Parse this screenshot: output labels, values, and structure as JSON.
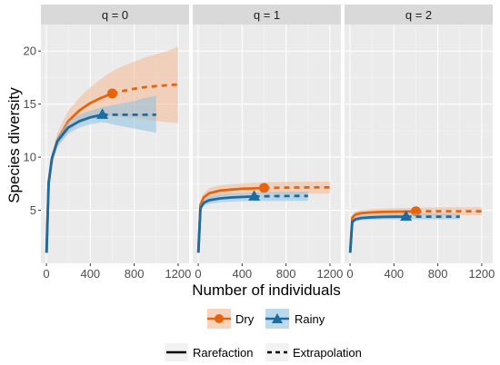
{
  "chart_data": {
    "type": "line",
    "facet_variable": "q",
    "facets": [
      {
        "label": "q = 0",
        "series": [
          {
            "name": "Dry",
            "observed": [
              600,
              16.0
            ],
            "x": [
              1,
              20,
              50,
              100,
              200,
              300,
              400,
              500,
              600,
              700,
              800,
              900,
              1000,
              1100,
              1200
            ],
            "y": [
              1.0,
              7.5,
              9.8,
              11.6,
              13.4,
              14.4,
              15.1,
              15.6,
              16.0,
              16.25,
              16.45,
              16.6,
              16.7,
              16.78,
              16.85
            ],
            "lower": [
              1.0,
              7.2,
              9.3,
              10.9,
              12.4,
              13.2,
              13.6,
              13.8,
              13.9,
              13.8,
              13.7,
              13.55,
              13.4,
              13.3,
              13.2
            ],
            "upper": [
              1.0,
              7.8,
              10.3,
              12.3,
              14.4,
              15.6,
              16.6,
              17.4,
              18.1,
              18.6,
              19.0,
              19.4,
              19.7,
              20.0,
              20.4
            ]
          },
          {
            "name": "Rainy",
            "observed": [
              510,
              14.0
            ],
            "x": [
              1,
              20,
              50,
              100,
              200,
              300,
              400,
              510,
              600,
              700,
              800,
              900,
              1000
            ],
            "y": [
              1.0,
              7.6,
              9.9,
              11.5,
              12.8,
              13.4,
              13.75,
              14.0,
              14.0,
              14.0,
              14.0,
              14.0,
              14.0
            ],
            "lower": [
              1.0,
              7.4,
              9.5,
              11.0,
              12.2,
              12.8,
              13.1,
              13.3,
              13.1,
              12.9,
              12.7,
              12.5,
              12.3
            ],
            "upper": [
              1.0,
              7.8,
              10.3,
              12.0,
              13.4,
              14.0,
              14.4,
              14.7,
              14.9,
              15.1,
              15.3,
              15.6,
              15.8
            ]
          }
        ]
      },
      {
        "label": "q = 1",
        "series": [
          {
            "name": "Dry",
            "observed": [
              600,
              7.1
            ],
            "x": [
              1,
              20,
              50,
              100,
              200,
              300,
              400,
              500,
              600,
              700,
              800,
              900,
              1000,
              1100,
              1200
            ],
            "y": [
              1.0,
              5.5,
              6.2,
              6.6,
              6.85,
              6.95,
              7.02,
              7.06,
              7.1,
              7.12,
              7.13,
              7.14,
              7.15,
              7.15,
              7.15
            ],
            "lower": [
              1.0,
              5.1,
              5.8,
              6.1,
              6.35,
              6.45,
              6.5,
              6.52,
              6.55,
              6.55,
              6.55,
              6.55,
              6.55,
              6.55,
              6.55
            ],
            "upper": [
              1.0,
              5.9,
              6.6,
              7.1,
              7.35,
              7.45,
              7.52,
              7.58,
              7.62,
              7.65,
              7.67,
              7.68,
              7.7,
              7.7,
              7.7
            ]
          },
          {
            "name": "Rainy",
            "observed": [
              510,
              6.3
            ],
            "x": [
              1,
              20,
              50,
              100,
              200,
              300,
              400,
              510,
              600,
              700,
              800,
              900,
              1000
            ],
            "y": [
              1.0,
              5.2,
              5.7,
              5.95,
              6.12,
              6.2,
              6.25,
              6.3,
              6.32,
              6.33,
              6.34,
              6.35,
              6.35
            ],
            "lower": [
              1.0,
              4.9,
              5.4,
              5.6,
              5.75,
              5.82,
              5.85,
              5.88,
              5.88,
              5.88,
              5.88,
              5.88,
              5.88
            ],
            "upper": [
              1.0,
              5.5,
              6.0,
              6.3,
              6.5,
              6.58,
              6.63,
              6.68,
              6.7,
              6.72,
              6.74,
              6.75,
              6.76
            ]
          }
        ]
      },
      {
        "label": "q = 2",
        "series": [
          {
            "name": "Dry",
            "observed": [
              600,
              4.9
            ],
            "x": [
              1,
              20,
              50,
              100,
              200,
              300,
              400,
              500,
              600,
              700,
              800,
              900,
              1000,
              1100,
              1200
            ],
            "y": [
              1.0,
              4.3,
              4.6,
              4.72,
              4.8,
              4.84,
              4.86,
              4.88,
              4.9,
              4.9,
              4.9,
              4.9,
              4.9,
              4.9,
              4.9
            ],
            "lower": [
              1.0,
              4.0,
              4.3,
              4.42,
              4.48,
              4.5,
              4.52,
              4.52,
              4.53,
              4.53,
              4.53,
              4.53,
              4.53,
              4.53,
              4.53
            ],
            "upper": [
              1.0,
              4.6,
              4.9,
              5.02,
              5.12,
              5.16,
              5.2,
              5.22,
              5.25,
              5.26,
              5.27,
              5.28,
              5.28,
              5.28,
              5.28
            ]
          },
          {
            "name": "Rainy",
            "observed": [
              510,
              4.4
            ],
            "x": [
              1,
              20,
              50,
              100,
              200,
              300,
              400,
              510,
              600,
              700,
              800,
              900,
              1000
            ],
            "y": [
              1.0,
              3.9,
              4.15,
              4.27,
              4.34,
              4.37,
              4.39,
              4.4,
              4.4,
              4.4,
              4.4,
              4.4,
              4.4
            ],
            "lower": [
              1.0,
              3.7,
              3.95,
              4.05,
              4.1,
              4.12,
              4.13,
              4.14,
              4.14,
              4.14,
              4.14,
              4.14,
              4.14
            ],
            "upper": [
              1.0,
              4.1,
              4.35,
              4.5,
              4.58,
              4.62,
              4.64,
              4.66,
              4.67,
              4.68,
              4.68,
              4.68,
              4.68
            ]
          }
        ]
      }
    ],
    "xlabel": "Number of individuals",
    "ylabel": "Species diversity",
    "xticks": [
      0,
      400,
      800,
      1200
    ],
    "xlim": [
      -50,
      1300
    ],
    "yticks": [
      5,
      10,
      15,
      20
    ],
    "ylim": [
      0,
      22.5
    ],
    "grid": true,
    "legend": {
      "placement": "bottom",
      "groups": [
        "Dry",
        "Rainy"
      ],
      "linetypes": [
        "Rarefaction",
        "Extrapolation"
      ]
    },
    "colors": {
      "Dry": "#E7640E",
      "Rainy": "#1B6CA0",
      "Dry_fill": "#F4B894",
      "Rainy_fill": "#8FC1E0"
    }
  }
}
